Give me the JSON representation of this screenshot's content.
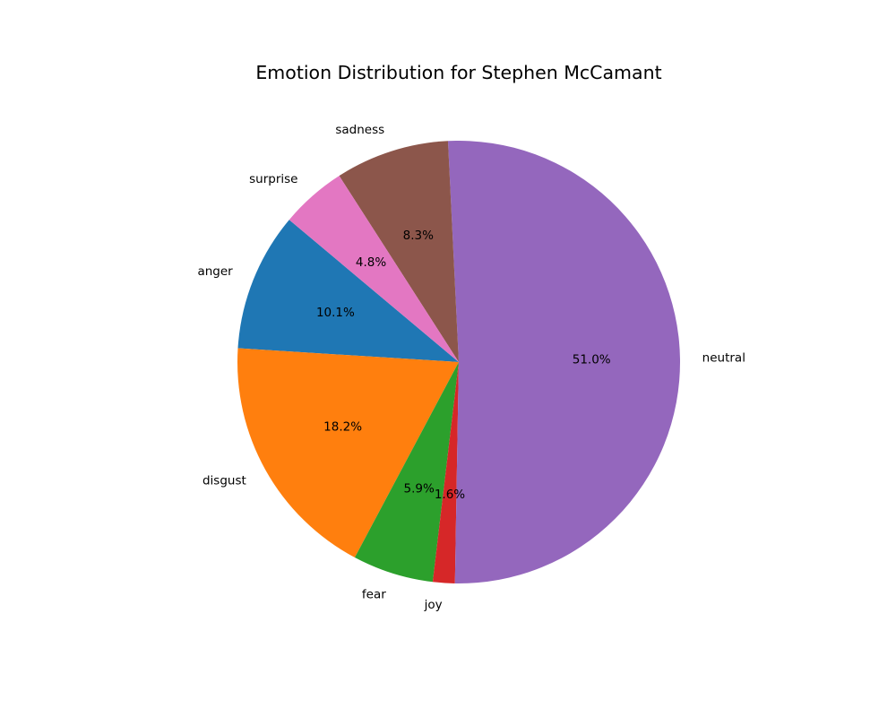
{
  "chart_data": {
    "type": "pie",
    "title": "Emotion Distribution for Stephen McCamant",
    "slices": [
      {
        "label": "anger",
        "value": 10.1,
        "pct_label": "10.1%",
        "color": "#1f77b4"
      },
      {
        "label": "disgust",
        "value": 18.2,
        "pct_label": "18.2%",
        "color": "#ff7f0e"
      },
      {
        "label": "fear",
        "value": 5.9,
        "pct_label": "5.9%",
        "color": "#2ca02c"
      },
      {
        "label": "joy",
        "value": 1.6,
        "pct_label": "1.6%",
        "color": "#d62728"
      },
      {
        "label": "neutral",
        "value": 51.0,
        "pct_label": "51.0%",
        "color": "#9467bd"
      },
      {
        "label": "sadness",
        "value": 8.3,
        "pct_label": "8.3%",
        "color": "#8c564b"
      },
      {
        "label": "surprise",
        "value": 4.8,
        "pct_label": "4.8%",
        "color": "#e377c2"
      }
    ],
    "start_angle_deg": 140,
    "direction": "counterclockwise",
    "legend": "none"
  }
}
